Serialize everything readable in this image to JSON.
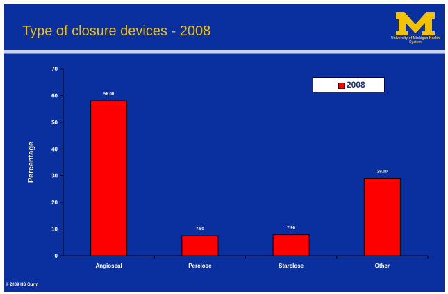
{
  "slide": {
    "title": "Type of closure devices - 2008",
    "logo_text": "University of Michigan Health System",
    "copyright": "© 2009 HS Gurm",
    "colors": {
      "background": "#0a2f9e",
      "title": "#f2c200",
      "logo": "#f2c200",
      "bar": "#ff0000",
      "axis_text": "#ffffff"
    }
  },
  "chart_data": {
    "type": "bar",
    "categories": [
      "Angioseal",
      "Perclose",
      "Starclose",
      "Other"
    ],
    "series": [
      {
        "name": "2008",
        "values": [
          58.0,
          7.5,
          7.9,
          29.0
        ]
      }
    ],
    "data_labels": [
      "58.00",
      "7.50",
      "7.90",
      "29.00"
    ],
    "ylabel": "Percentage",
    "ylim": [
      0,
      70
    ],
    "yticks": [
      0,
      10,
      20,
      30,
      40,
      50,
      60,
      70
    ],
    "ytick_labels": [
      "0",
      "10",
      "20",
      "30",
      "40",
      "50",
      "60",
      "70"
    ],
    "grid": false,
    "legend_position": "top-right"
  }
}
